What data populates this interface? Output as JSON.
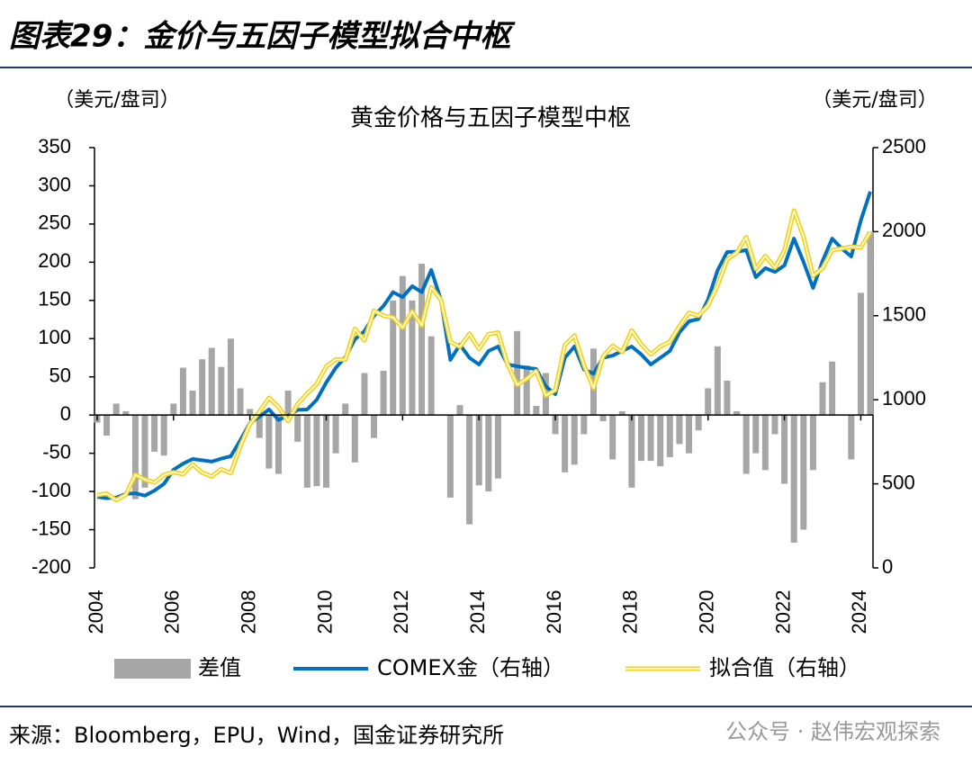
{
  "header": {
    "title": "图表29：金价与五因子模型拟合中枢"
  },
  "chart_data": {
    "type": "combo",
    "title": "黄金价格与五因子模型中枢",
    "ylabel": "（美元/盘司）",
    "y2label": "（美元/盘司）",
    "x": [
      2004,
      2004.25,
      2004.5,
      2004.75,
      2005,
      2005.25,
      2005.5,
      2005.75,
      2006,
      2006.25,
      2006.5,
      2006.75,
      2007,
      2007.25,
      2007.5,
      2007.75,
      2008,
      2008.25,
      2008.5,
      2008.75,
      2009,
      2009.25,
      2009.5,
      2009.75,
      2010,
      2010.25,
      2010.5,
      2010.75,
      2011,
      2011.25,
      2011.5,
      2011.75,
      2012,
      2012.25,
      2012.5,
      2012.75,
      2013,
      2013.25,
      2013.5,
      2013.75,
      2014,
      2014.25,
      2014.5,
      2014.75,
      2015,
      2015.25,
      2015.5,
      2015.75,
      2016,
      2016.25,
      2016.5,
      2016.75,
      2017,
      2017.25,
      2017.5,
      2017.75,
      2018,
      2018.25,
      2018.5,
      2018.75,
      2019,
      2019.25,
      2019.5,
      2019.75,
      2020,
      2020.25,
      2020.5,
      2020.75,
      2021,
      2021.25,
      2021.5,
      2021.75,
      2022,
      2022.25,
      2022.5,
      2022.75,
      2023,
      2023.25,
      2023.5,
      2023.75,
      2024,
      2024.25
    ],
    "xlim": [
      2003.93,
      2024.32
    ],
    "xticks": [
      2004,
      2006,
      2008,
      2010,
      2012,
      2014,
      2016,
      2018,
      2020,
      2022,
      2024
    ],
    "ylim": [
      -200,
      350
    ],
    "yticks": [
      -200,
      -150,
      -100,
      -50,
      0,
      50,
      100,
      150,
      200,
      250,
      300,
      350
    ],
    "y2lim": [
      0,
      2500
    ],
    "y2ticks": [
      0,
      500,
      1000,
      1500,
      2000,
      2500
    ],
    "series": [
      {
        "name": "差值",
        "type": "bar",
        "color": "#a6a6a6",
        "values": [
          -10,
          -27,
          15,
          5,
          -110,
          -95,
          -48,
          -53,
          15,
          62,
          32,
          73,
          88,
          63,
          100,
          35,
          8,
          -30,
          -70,
          -77,
          32,
          -35,
          -95,
          -93,
          -95,
          -50,
          15,
          -62,
          55,
          -30,
          58,
          150,
          182,
          150,
          198,
          103,
          0,
          -108,
          13,
          -143,
          -92,
          -100,
          -83,
          0,
          110,
          65,
          12,
          55,
          -25,
          -75,
          -65,
          -25,
          87,
          -8,
          -58,
          5,
          -95,
          -60,
          -60,
          -67,
          -55,
          -38,
          -50,
          -20,
          35,
          90,
          45,
          5,
          -77,
          -50,
          -72,
          -25,
          -90,
          -167,
          -150,
          -72,
          43,
          70,
          0,
          -58,
          160,
          240
        ]
      },
      {
        "name": "COMEX金（右轴）",
        "type": "line",
        "axis": "y2",
        "color": "#0070c0",
        "values": [
          423,
          415,
          418,
          440,
          444,
          430,
          460,
          500,
          584,
          620,
          648,
          640,
          632,
          650,
          664,
          760,
          862,
          900,
          942,
          880,
          905,
          940,
          942,
          1000,
          1103,
          1190,
          1253,
          1360,
          1408,
          1500,
          1558,
          1640,
          1611,
          1676,
          1640,
          1772,
          1596,
          1237,
          1328,
          1250,
          1210,
          1290,
          1317,
          1210,
          1199,
          1190,
          1183,
          1080,
          1033,
          1250,
          1317,
          1180,
          1156,
          1250,
          1263,
          1290,
          1317,
          1270,
          1210,
          1250,
          1290,
          1400,
          1467,
          1480,
          1596,
          1770,
          1879,
          1880,
          1890,
          1729,
          1783,
          1760,
          1799,
          1959,
          1820,
          1665,
          1826,
          1959,
          1900,
          1852,
          2066,
          2238
        ]
      },
      {
        "name": "拟合值（右轴）",
        "type": "line",
        "axis": "y2",
        "color": "#f5d312",
        "values": [
          433,
          442,
          403,
          435,
          554,
          525,
          508,
          553,
          569,
          558,
          616,
          567,
          544,
          587,
          564,
          725,
          854,
          930,
          1012,
          957,
          873,
          975,
          1037,
          1093,
          1198,
          1240,
          1238,
          1422,
          1353,
          1530,
          1500,
          1490,
          1429,
          1526,
          1442,
          1669,
          1596,
          1345,
          1315,
          1393,
          1302,
          1390,
          1400,
          1210,
          1089,
          1125,
          1171,
          1025,
          1058,
          1325,
          1382,
          1205,
          1069,
          1258,
          1321,
          1285,
          1412,
          1330,
          1270,
          1317,
          1345,
          1438,
          1517,
          1500,
          1561,
          1680,
          1834,
          1875,
          1967,
          1779,
          1855,
          1785,
          1889,
          2126,
          1970,
          1737,
          1783,
          1889,
          1900,
          1910,
          1906,
          1998
        ]
      }
    ],
    "source": "来源：Bloomberg，EPU，Wind，国金证券研究所",
    "watermark": "公众号 · 赵伟宏观探索"
  }
}
